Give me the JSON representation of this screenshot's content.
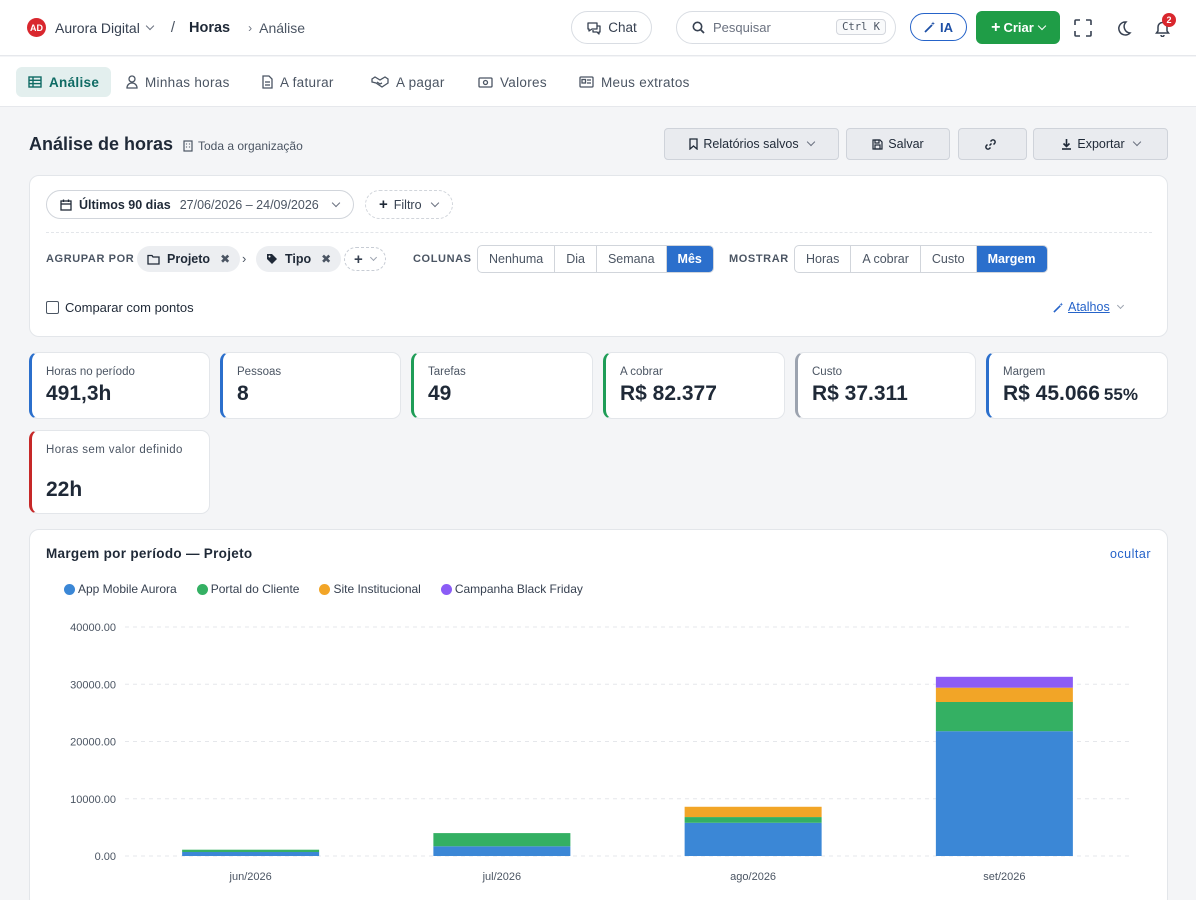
{
  "topbar": {
    "org_initials": "AD",
    "org_name": "Aurora Digital",
    "breadcrumb_sep": "/",
    "section": "Horas",
    "subsection": "Análise",
    "chat_label": "Chat",
    "search_placeholder": "Pesquisar",
    "search_shortcut": "Ctrl K",
    "ia_label": "IA",
    "criar_label": "Criar",
    "notifications_count": "2"
  },
  "tabs": [
    {
      "label": "Análise",
      "icon": "table-icon",
      "active": true
    },
    {
      "label": "Minhas horas",
      "icon": "user-icon"
    },
    {
      "label": "A faturar",
      "icon": "document-icon"
    },
    {
      "label": "A pagar",
      "icon": "handshake-icon"
    },
    {
      "label": "Valores",
      "icon": "money-icon"
    },
    {
      "label": "Meus extratos",
      "icon": "statement-icon"
    }
  ],
  "header": {
    "title": "Análise de horas",
    "scope": "Toda a organização",
    "saved_reports": "Relatórios salvos",
    "save": "Salvar",
    "export": "Exportar"
  },
  "filters": {
    "period_label": "Últimos 90 dias",
    "period_range": "27/06/2026 – 24/09/2026",
    "filter_label": "Filtro",
    "group_by_label": "AGRUPAR POR",
    "group_chips": [
      "Projeto",
      "Tipo"
    ],
    "columns_label": "COLUNAS",
    "columns_options": [
      "Nenhuma",
      "Dia",
      "Semana",
      "Mês"
    ],
    "columns_selected": "Mês",
    "show_label": "MOSTRAR",
    "show_options": [
      "Horas",
      "A cobrar",
      "Custo",
      "Margem"
    ],
    "show_selected": "Margem",
    "compare_label": "Comparar com pontos",
    "shortcuts_label": "Atalhos"
  },
  "kpis": [
    {
      "label": "Horas no período",
      "value": "491,3h",
      "color": "#2b6fcc"
    },
    {
      "label": "Pessoas",
      "value": "8",
      "color": "#2b6fcc"
    },
    {
      "label": "Tarefas",
      "value": "49",
      "color": "#1f9d57"
    },
    {
      "label": "A cobrar",
      "value": "R$ 82.377",
      "color": "#1f9d57"
    },
    {
      "label": "Custo",
      "value": "R$ 37.311",
      "color": "#9ca3af"
    },
    {
      "label": "Margem",
      "value": "R$ 45.066",
      "pct": "55%",
      "color": "#2b6fcc"
    },
    {
      "label": "Horas sem valor definido",
      "value": "22h",
      "color": "#c62828"
    }
  ],
  "chart": {
    "card_title": "Margem por período — Projeto",
    "hide_label": "ocultar"
  },
  "chart_data": {
    "type": "bar",
    "stacked": true,
    "categories": [
      "jun/2026",
      "jul/2026",
      "ago/2026",
      "set/2026"
    ],
    "series": [
      {
        "name": "App Mobile Aurora",
        "color": "#3b87d6",
        "values": [
          700,
          1700,
          5800,
          21800
        ]
      },
      {
        "name": "Portal do Cliente",
        "color": "#34b063",
        "values": [
          400,
          2300,
          1000,
          5100
        ]
      },
      {
        "name": "Site Institucional",
        "color": "#f2a527",
        "values": [
          0,
          0,
          1800,
          2500
        ]
      },
      {
        "name": "Campanha Black Friday",
        "color": "#8b5cf6",
        "values": [
          0,
          0,
          0,
          1900
        ]
      }
    ],
    "ylim": [
      0,
      40000
    ],
    "yticks": [
      "0.00",
      "10000.00",
      "20000.00",
      "30000.00",
      "40000.00"
    ],
    "ytick_values": [
      0,
      10000,
      20000,
      30000,
      40000
    ],
    "grid": true,
    "legend_position": "top-left"
  }
}
